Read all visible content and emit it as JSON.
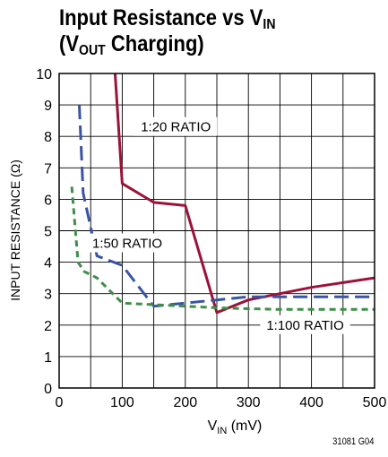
{
  "title": {
    "line1_main": "Input Resistance vs V",
    "line1_sub": "IN",
    "line2_open": "(V",
    "line2_sub": "OUT",
    "line2_rest": " Charging)"
  },
  "figure_id": "31081 G04",
  "chart_data": {
    "type": "line",
    "xlabel_main": "V",
    "xlabel_sub": "IN",
    "xlabel_rest": " (mV)",
    "ylabel": "INPUT RESISTANCE (Ω)",
    "xlim": [
      0,
      500
    ],
    "ylim": [
      0,
      10
    ],
    "x_ticks": [
      0,
      100,
      200,
      300,
      400,
      500
    ],
    "y_ticks": [
      0,
      1,
      2,
      3,
      4,
      5,
      6,
      7,
      8,
      9,
      10
    ],
    "x_minor_step": 50,
    "grid": true,
    "series": [
      {
        "name": "1:20 RATIO",
        "color": "#9c1238",
        "style": "solid",
        "x": [
          88,
          100,
          150,
          200,
          250,
          300,
          350,
          400,
          450,
          500
        ],
        "y": [
          10.2,
          6.5,
          5.9,
          5.8,
          2.4,
          2.8,
          3.0,
          3.2,
          3.35,
          3.5
        ]
      },
      {
        "name": "1:50 RATIO",
        "color": "#3855a5",
        "style": "longdash",
        "x": [
          32,
          38,
          60,
          100,
          150,
          200,
          250,
          300,
          350,
          400,
          450,
          500
        ],
        "y": [
          9.0,
          6.2,
          4.2,
          3.9,
          2.6,
          2.7,
          2.8,
          2.9,
          2.9,
          2.9,
          2.9,
          2.9
        ]
      },
      {
        "name": "1:100 RATIO",
        "color": "#3f8f47",
        "style": "shortdash",
        "x": [
          20,
          30,
          40,
          60,
          100,
          150,
          200,
          250,
          300,
          350,
          400,
          450,
          500
        ],
        "y": [
          6.4,
          4.0,
          3.7,
          3.5,
          2.7,
          2.65,
          2.6,
          2.55,
          2.52,
          2.5,
          2.5,
          2.5,
          2.5
        ]
      }
    ],
    "annotations": [
      {
        "text": "1:20 RATIO",
        "series": 0,
        "x": 185,
        "y": 8.3
      },
      {
        "text": "1:50 RATIO",
        "series": 1,
        "x": 108,
        "y": 4.6
      },
      {
        "text": "1:100 RATIO",
        "series": 2,
        "x": 390,
        "y": 2.0
      }
    ]
  }
}
